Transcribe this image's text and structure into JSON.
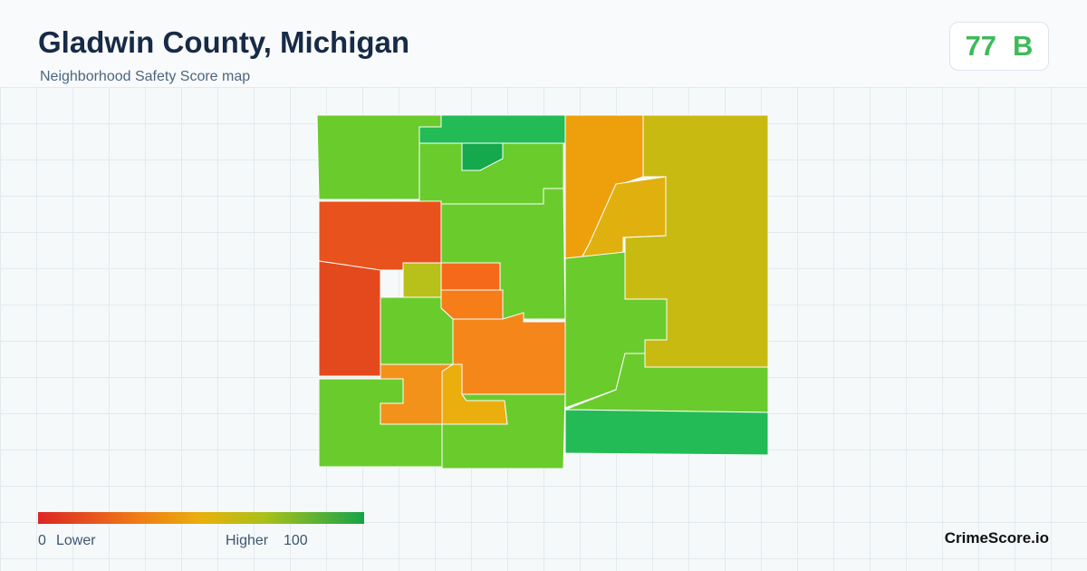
{
  "header": {
    "title": "Gladwin County, Michigan",
    "subtitle": "Neighborhood Safety Score map"
  },
  "score": {
    "value": 77,
    "grade": "B"
  },
  "legend": {
    "min": 0,
    "min_label": "Lower",
    "max_label": "Higher",
    "max": 100
  },
  "brand": "CrimeScore.io"
}
